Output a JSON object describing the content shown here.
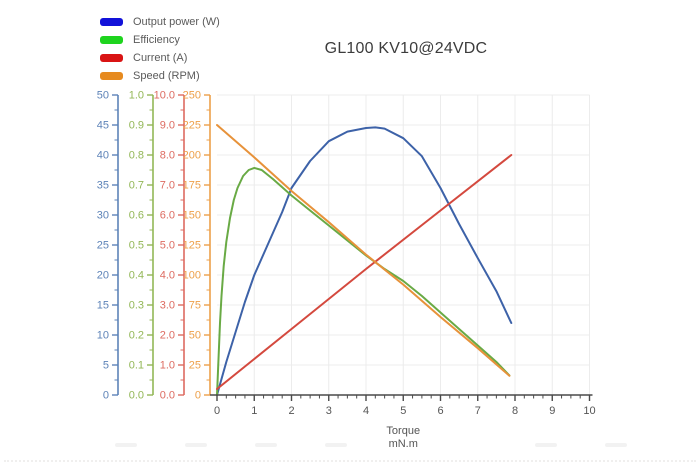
{
  "title": "GL100 KV10@24VDC",
  "legend": {
    "items": [
      {
        "label": "Output power (W)",
        "icon": "legend-swatch-output-power",
        "color": "#1212d9"
      },
      {
        "label": "Efficiency",
        "icon": "legend-swatch-efficiency",
        "color": "#1ed41e"
      },
      {
        "label": "Current (A)",
        "icon": "legend-swatch-current",
        "color": "#d91414"
      },
      {
        "label": "Speed (RPM)",
        "icon": "legend-swatch-speed",
        "color": "#e68a1f"
      }
    ]
  },
  "chart_data": {
    "type": "line",
    "title": "GL100 KV10@24VDC",
    "xlabel": "Torque",
    "xunit": "mN.m",
    "grid": true,
    "legend_position": "top-left",
    "x_axis": {
      "min": 0,
      "max": 10,
      "major_step": 1,
      "minor_step": 0.25,
      "tick_labels": [
        "0",
        "1",
        "2",
        "3",
        "4",
        "5",
        "6",
        "7",
        "8",
        "9",
        "10"
      ],
      "color": "#4a4a4a",
      "label_color": "#555555"
    },
    "y_axes": [
      {
        "id": "power",
        "name": "Output power (W)",
        "min": 0,
        "max": 50,
        "major_step": 5,
        "tick_labels": [
          "0",
          "5",
          "10",
          "15",
          "20",
          "25",
          "30",
          "35",
          "40",
          "45",
          "50"
        ],
        "color": "#5d83b8"
      },
      {
        "id": "efficiency",
        "name": "Efficiency",
        "min": 0.0,
        "max": 1.0,
        "major_step": 0.1,
        "tick_labels": [
          "0.0",
          "0.1",
          "0.2",
          "0.3",
          "0.4",
          "0.5",
          "0.6",
          "0.7",
          "0.8",
          "0.9",
          "1.0"
        ],
        "color": "#93b757"
      },
      {
        "id": "current",
        "name": "Current (A)",
        "min": 0.0,
        "max": 10.0,
        "major_step": 1.0,
        "tick_labels": [
          "0.0",
          "1.0",
          "2.0",
          "3.0",
          "4.0",
          "5.0",
          "6.0",
          "7.0",
          "8.0",
          "9.0",
          "10.0"
        ],
        "color": "#dd6b61"
      },
      {
        "id": "speed",
        "name": "Speed (RPM)",
        "min": 0,
        "max": 250,
        "major_step": 25,
        "tick_labels": [
          "0",
          "25",
          "50",
          "75",
          "100",
          "125",
          "150",
          "175",
          "200",
          "225",
          "250"
        ],
        "color": "#eda04a"
      }
    ],
    "series": [
      {
        "name": "Output power (W)",
        "axis": "power",
        "color": "#3d62a8",
        "points": [
          [
            0,
            0
          ],
          [
            0.25,
            5.5
          ],
          [
            0.5,
            10.5
          ],
          [
            0.75,
            15.5
          ],
          [
            1,
            20
          ],
          [
            1.25,
            23.5
          ],
          [
            1.5,
            27
          ],
          [
            1.75,
            30.5
          ],
          [
            2,
            34.5
          ],
          [
            2.5,
            39
          ],
          [
            3,
            42.3
          ],
          [
            3.5,
            43.9
          ],
          [
            4,
            44.5
          ],
          [
            4.25,
            44.6
          ],
          [
            4.5,
            44.4
          ],
          [
            5,
            42.8
          ],
          [
            5.5,
            39.8
          ],
          [
            6,
            34.5
          ],
          [
            6.5,
            28.5
          ],
          [
            7,
            22.8
          ],
          [
            7.5,
            17.3
          ],
          [
            7.9,
            12
          ]
        ]
      },
      {
        "name": "Efficiency",
        "axis": "efficiency",
        "color": "#69aa45",
        "points": [
          [
            0,
            0
          ],
          [
            0.04,
            0.12
          ],
          [
            0.08,
            0.24
          ],
          [
            0.12,
            0.33
          ],
          [
            0.18,
            0.43
          ],
          [
            0.25,
            0.51
          ],
          [
            0.35,
            0.59
          ],
          [
            0.45,
            0.65
          ],
          [
            0.55,
            0.69
          ],
          [
            0.7,
            0.73
          ],
          [
            0.85,
            0.75
          ],
          [
            1.0,
            0.757
          ],
          [
            1.2,
            0.75
          ],
          [
            1.5,
            0.72
          ],
          [
            2,
            0.665
          ],
          [
            2.5,
            0.615
          ],
          [
            3,
            0.565
          ],
          [
            3.5,
            0.515
          ],
          [
            4,
            0.465
          ],
          [
            4.5,
            0.42
          ],
          [
            5,
            0.38
          ],
          [
            5.5,
            0.33
          ],
          [
            6,
            0.275
          ],
          [
            6.5,
            0.22
          ],
          [
            7,
            0.165
          ],
          [
            7.5,
            0.11
          ],
          [
            7.85,
            0.065
          ]
        ]
      },
      {
        "name": "Current (A)",
        "axis": "current",
        "color": "#d4493e",
        "points": [
          [
            0,
            0.2
          ],
          [
            2,
            2.2
          ],
          [
            4,
            4.2
          ],
          [
            6,
            6.15
          ],
          [
            7.9,
            8.0
          ]
        ]
      },
      {
        "name": "Speed (RPM)",
        "axis": "speed",
        "color": "#e7923a",
        "points": [
          [
            0,
            225
          ],
          [
            1,
            198
          ],
          [
            2,
            170
          ],
          [
            3,
            144
          ],
          [
            4,
            117
          ],
          [
            5,
            92
          ],
          [
            6,
            65
          ],
          [
            7,
            39
          ],
          [
            7.85,
            16
          ]
        ]
      }
    ]
  }
}
